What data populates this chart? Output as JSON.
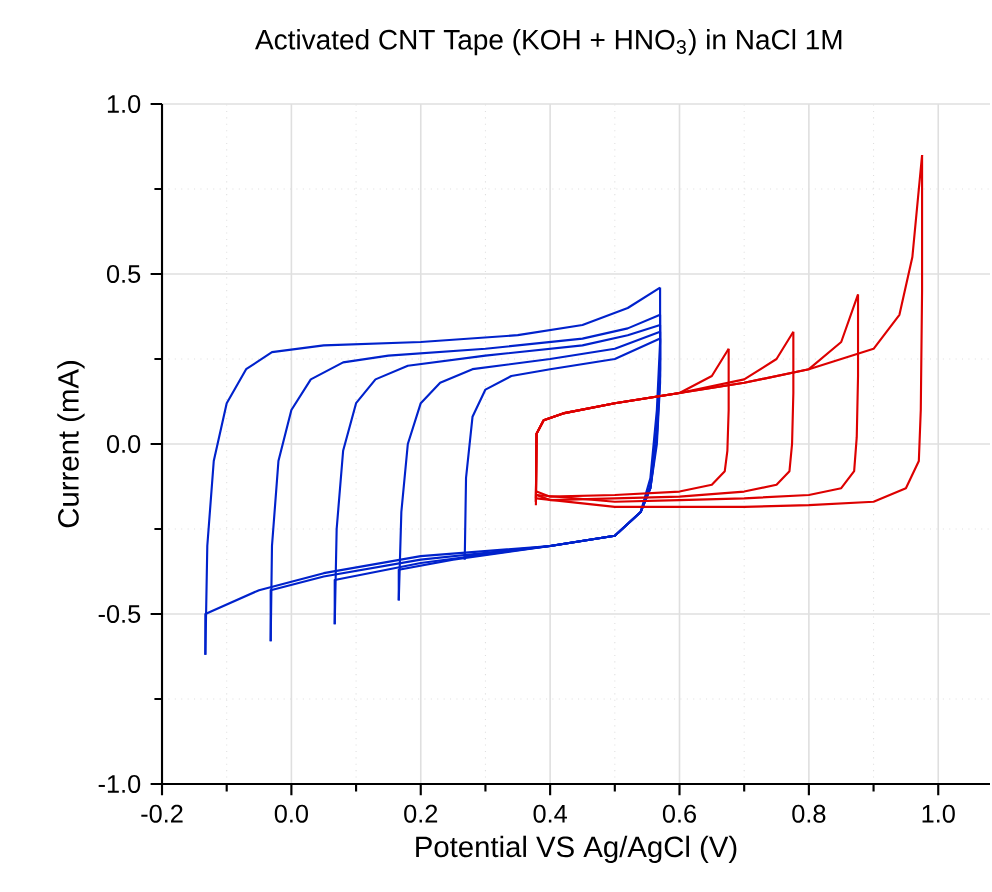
{
  "chart_data": {
    "type": "line",
    "title": "Activated CNT Tape (KOH + HNO$_{3}$) in NaCl 1M",
    "xlabel": "Potential VS Ag/AgCl (V)",
    "ylabel": "Current (mA)",
    "xlim": [
      -0.2,
      1.08
    ],
    "ylim": [
      -1,
      1
    ],
    "xticks": [
      {
        "value": -0.2,
        "label": "-0.2"
      },
      {
        "value": 0,
        "label": "0.0"
      },
      {
        "value": 0.2,
        "label": "0.2"
      },
      {
        "value": 0.4,
        "label": "0.4"
      },
      {
        "value": 0.6,
        "label": "0.6"
      },
      {
        "value": 0.8,
        "label": "0.8"
      },
      {
        "value": 1,
        "label": "1.0"
      }
    ],
    "yticks": [
      {
        "value": -1,
        "label": "-1.0"
      },
      {
        "value": -0.5,
        "label": "-0.5"
      },
      {
        "value": 0,
        "label": "0.0"
      },
      {
        "value": 0.5,
        "label": "0.5"
      },
      {
        "value": 1,
        "label": "1.0"
      }
    ],
    "grid": true,
    "marker": "none",
    "line_style": "solid",
    "series": [
      {
        "color": "#0022cc",
        "x": [
          -0.133,
          -0.13,
          -0.12,
          -0.1,
          -0.07,
          -0.03,
          0.05,
          0.2,
          0.35,
          0.45,
          0.52,
          0.57
        ],
        "values": [
          -0.62,
          -0.3,
          -0.05,
          0.12,
          0.22,
          0.27,
          0.29,
          0.3,
          0.32,
          0.35,
          0.4,
          0.46
        ]
      },
      {
        "color": "#0022cc",
        "x": [
          -0.133,
          -0.133,
          -0.05,
          0.05,
          0.2,
          0.4,
          0.5,
          0.54,
          0.555,
          0.565,
          0.57,
          0.57
        ],
        "values": [
          -0.62,
          -0.5,
          -0.43,
          -0.38,
          -0.33,
          -0.3,
          -0.27,
          -0.2,
          -0.1,
          0.1,
          0.3,
          0.46
        ]
      },
      {
        "color": "#0022cc",
        "x": [
          -0.032,
          -0.03,
          -0.02,
          0.0,
          0.03,
          0.08,
          0.15,
          0.3,
          0.45,
          0.52,
          0.57
        ],
        "values": [
          -0.58,
          -0.3,
          -0.05,
          0.1,
          0.19,
          0.24,
          0.26,
          0.28,
          0.31,
          0.34,
          0.38
        ]
      },
      {
        "color": "#0022cc",
        "x": [
          -0.032,
          -0.032,
          0.05,
          0.2,
          0.4,
          0.5,
          0.54,
          0.555,
          0.565,
          0.57,
          0.57
        ],
        "values": [
          -0.58,
          -0.43,
          -0.39,
          -0.34,
          -0.3,
          -0.27,
          -0.2,
          -0.12,
          0.05,
          0.25,
          0.38
        ]
      },
      {
        "color": "#0022cc",
        "x": [
          0.067,
          0.07,
          0.08,
          0.1,
          0.13,
          0.18,
          0.3,
          0.45,
          0.52,
          0.57
        ],
        "values": [
          -0.53,
          -0.25,
          -0.02,
          0.12,
          0.19,
          0.23,
          0.26,
          0.29,
          0.32,
          0.35
        ]
      },
      {
        "color": "#0022cc",
        "x": [
          0.067,
          0.067,
          0.2,
          0.4,
          0.5,
          0.54,
          0.555,
          0.565,
          0.57,
          0.57
        ],
        "values": [
          -0.53,
          -0.4,
          -0.35,
          -0.3,
          -0.27,
          -0.2,
          -0.13,
          0.03,
          0.22,
          0.35
        ]
      },
      {
        "color": "#0022cc",
        "x": [
          0.166,
          0.17,
          0.18,
          0.2,
          0.23,
          0.28,
          0.4,
          0.5,
          0.57
        ],
        "values": [
          -0.46,
          -0.2,
          0.0,
          0.12,
          0.18,
          0.22,
          0.25,
          0.28,
          0.33
        ]
      },
      {
        "color": "#0022cc",
        "x": [
          0.166,
          0.166,
          0.25,
          0.4,
          0.5,
          0.54,
          0.555,
          0.565,
          0.57,
          0.57
        ],
        "values": [
          -0.46,
          -0.37,
          -0.34,
          -0.3,
          -0.27,
          -0.2,
          -0.13,
          0.02,
          0.2,
          0.33
        ]
      },
      {
        "color": "#0022cc",
        "x": [
          0.268,
          0.27,
          0.28,
          0.3,
          0.34,
          0.4,
          0.5,
          0.57
        ],
        "values": [
          -0.34,
          -0.1,
          0.08,
          0.16,
          0.2,
          0.22,
          0.25,
          0.31
        ]
      },
      {
        "color": "#0022cc",
        "x": [
          0.268,
          0.268,
          0.4,
          0.5,
          0.54,
          0.555,
          0.565,
          0.57,
          0.57
        ],
        "values": [
          -0.34,
          -0.33,
          -0.3,
          -0.27,
          -0.2,
          -0.13,
          0.0,
          0.18,
          0.31
        ]
      },
      {
        "color": "#dd0000",
        "x": [
          0.378,
          0.379,
          0.39,
          0.42,
          0.5,
          0.6,
          0.65,
          0.676
        ],
        "values": [
          -0.16,
          0.03,
          0.07,
          0.09,
          0.12,
          0.15,
          0.2,
          0.28
        ]
      },
      {
        "color": "#dd0000",
        "x": [
          0.379,
          0.4,
          0.5,
          0.6,
          0.65,
          0.67,
          0.674,
          0.676,
          0.676
        ],
        "values": [
          -0.14,
          -0.155,
          -0.15,
          -0.14,
          -0.12,
          -0.08,
          -0.02,
          0.1,
          0.28
        ]
      },
      {
        "color": "#dd0000",
        "x": [
          0.378,
          0.379,
          0.39,
          0.42,
          0.5,
          0.6,
          0.7,
          0.75,
          0.776
        ],
        "values": [
          -0.17,
          0.03,
          0.07,
          0.09,
          0.12,
          0.15,
          0.19,
          0.25,
          0.33
        ]
      },
      {
        "color": "#dd0000",
        "x": [
          0.379,
          0.4,
          0.5,
          0.6,
          0.7,
          0.75,
          0.77,
          0.774,
          0.776,
          0.776
        ],
        "values": [
          -0.15,
          -0.165,
          -0.16,
          -0.155,
          -0.14,
          -0.12,
          -0.08,
          0.0,
          0.15,
          0.33
        ]
      },
      {
        "color": "#dd0000",
        "x": [
          0.378,
          0.379,
          0.39,
          0.42,
          0.5,
          0.6,
          0.7,
          0.8,
          0.85,
          0.876
        ],
        "values": [
          -0.17,
          0.03,
          0.07,
          0.09,
          0.12,
          0.15,
          0.18,
          0.22,
          0.3,
          0.44
        ]
      },
      {
        "color": "#dd0000",
        "x": [
          0.379,
          0.5,
          0.6,
          0.7,
          0.8,
          0.85,
          0.87,
          0.874,
          0.876,
          0.876
        ],
        "values": [
          -0.15,
          -0.17,
          -0.165,
          -0.16,
          -0.15,
          -0.13,
          -0.08,
          0.02,
          0.2,
          0.44
        ]
      },
      {
        "color": "#dd0000",
        "x": [
          0.378,
          0.379,
          0.39,
          0.42,
          0.5,
          0.6,
          0.7,
          0.8,
          0.9,
          0.94,
          0.96,
          0.975
        ],
        "values": [
          -0.18,
          0.03,
          0.07,
          0.09,
          0.12,
          0.15,
          0.18,
          0.22,
          0.28,
          0.38,
          0.55,
          0.85
        ]
      },
      {
        "color": "#dd0000",
        "x": [
          0.379,
          0.5,
          0.7,
          0.8,
          0.9,
          0.95,
          0.97,
          0.973,
          0.975,
          0.975
        ],
        "values": [
          -0.16,
          -0.185,
          -0.185,
          -0.18,
          -0.17,
          -0.13,
          -0.05,
          0.1,
          0.45,
          0.85
        ]
      }
    ]
  }
}
